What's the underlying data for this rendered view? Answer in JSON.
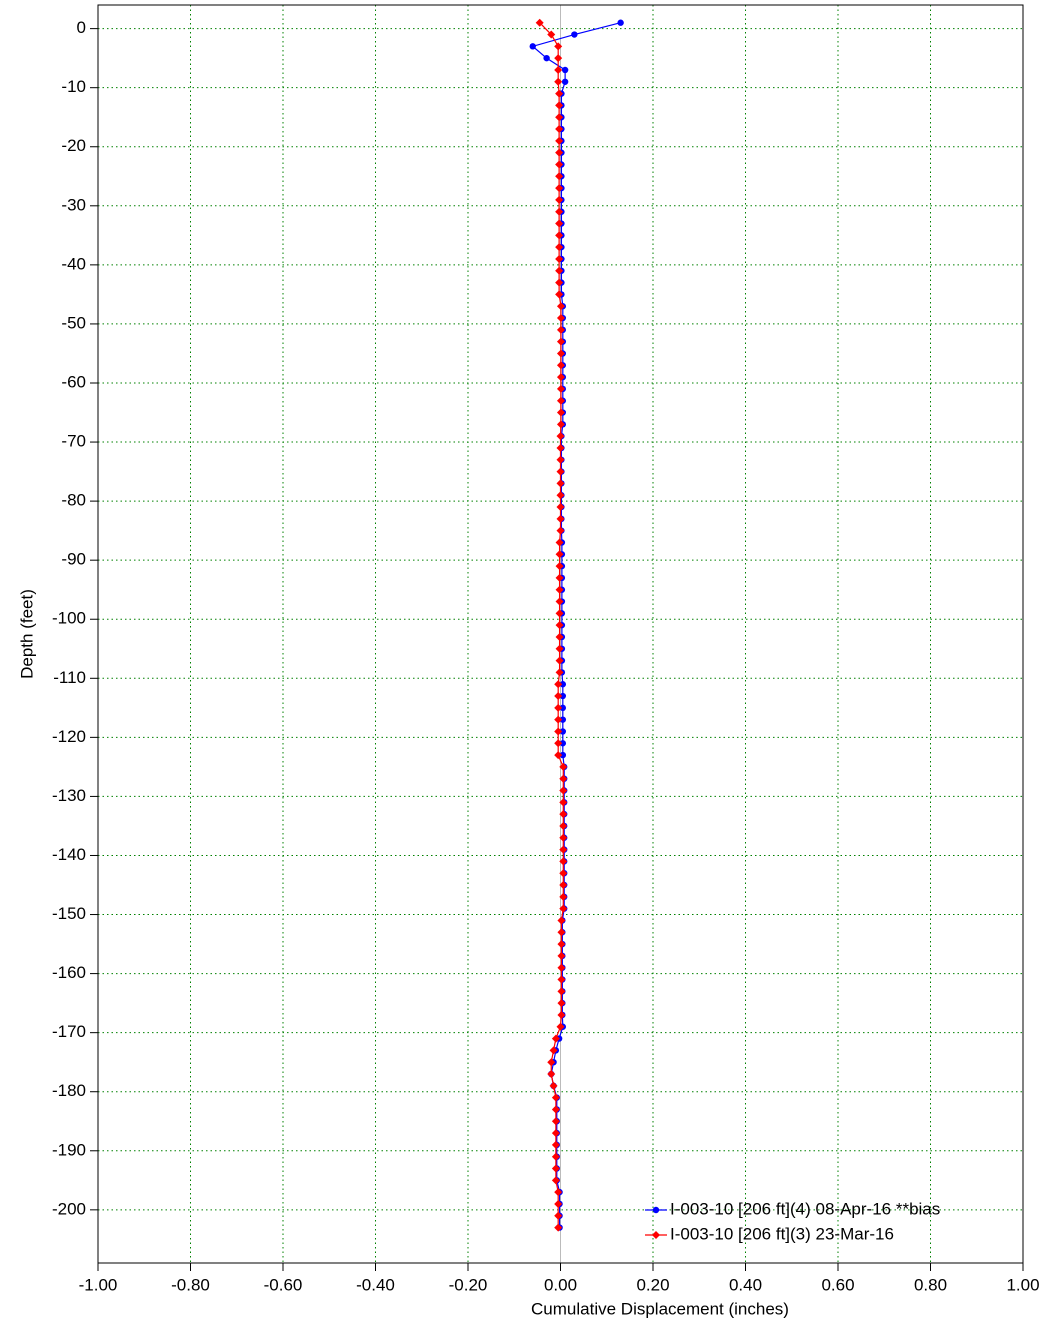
{
  "chart_data": {
    "type": "profile",
    "x_label": "Cumulative Displacement (inches)",
    "y_label": "Depth (feet)",
    "xlim": [
      -1,
      1
    ],
    "ylim": [
      -209,
      4
    ],
    "xticks": [
      {
        "value": -1,
        "label": "-1.00"
      },
      {
        "value": -0.8,
        "label": "-0.80"
      },
      {
        "value": -0.6,
        "label": "-0.60"
      },
      {
        "value": -0.4,
        "label": "-0.40"
      },
      {
        "value": -0.2,
        "label": "-0.20"
      },
      {
        "value": 0,
        "label": "0.00"
      },
      {
        "value": 0.2,
        "label": "0.20"
      },
      {
        "value": 0.4,
        "label": "0.40"
      },
      {
        "value": 0.6,
        "label": "0.60"
      },
      {
        "value": 0.8,
        "label": "0.80"
      },
      {
        "value": 1,
        "label": "1.00"
      }
    ],
    "yticks": [
      0,
      -10,
      -20,
      -30,
      -40,
      -50,
      -60,
      -70,
      -80,
      -90,
      -100,
      -110,
      -120,
      -130,
      -140,
      -150,
      -160,
      -170,
      -180,
      -190,
      -200
    ],
    "grid": true,
    "legend": "lower right",
    "depths": [
      1,
      -1,
      -3,
      -5,
      -7,
      -9,
      -11,
      -13,
      -15,
      -17,
      -19,
      -21,
      -23,
      -25,
      -27,
      -29,
      -31,
      -33,
      -35,
      -37,
      -39,
      -41,
      -43,
      -45,
      -47,
      -49,
      -51,
      -53,
      -55,
      -57,
      -59,
      -61,
      -63,
      -65,
      -67,
      -69,
      -71,
      -73,
      -75,
      -77,
      -79,
      -81,
      -83,
      -85,
      -87,
      -89,
      -91,
      -93,
      -95,
      -97,
      -99,
      -101,
      -103,
      -105,
      -107,
      -109,
      -111,
      -113,
      -115,
      -117,
      -119,
      -121,
      -123,
      -125,
      -127,
      -129,
      -131,
      -133,
      -135,
      -137,
      -139,
      -141,
      -143,
      -145,
      -147,
      -149,
      -151,
      -153,
      -155,
      -157,
      -159,
      -161,
      -163,
      -165,
      -167,
      -169,
      -171,
      -173,
      -175,
      -177,
      -179,
      -181,
      -183,
      -185,
      -187,
      -189,
      -191,
      -193,
      -195,
      -197,
      -199,
      -201,
      -203
    ],
    "series": [
      {
        "name": "I-003-10 [206 ft](4) 08-Apr-16 **bias",
        "color": "#0000ff",
        "values": [
          0.13,
          0.03,
          -0.06,
          -0.03,
          0.01,
          0.01,
          0.002,
          0.002,
          0.002,
          0.002,
          0.002,
          0.002,
          0.002,
          0.002,
          0.002,
          0.002,
          0.002,
          0.002,
          0.002,
          0.002,
          0.002,
          0.002,
          0.002,
          0.002,
          0.005,
          0.005,
          0.005,
          0.005,
          0.005,
          0.005,
          0.005,
          0.005,
          0.005,
          0.005,
          0.005,
          0.002,
          0.002,
          0.002,
          0.002,
          0.002,
          0.002,
          0.002,
          0.002,
          0.002,
          0.003,
          0.003,
          0.003,
          0.003,
          0.003,
          0.003,
          0.003,
          0.003,
          0.003,
          0.003,
          0.003,
          0.003,
          0.005,
          0.005,
          0.005,
          0.005,
          0.005,
          0.005,
          0.005,
          0.008,
          0.008,
          0.008,
          0.008,
          0.008,
          0.008,
          0.008,
          0.008,
          0.008,
          0.008,
          0.008,
          0.008,
          0.008,
          0.004,
          0.004,
          0.004,
          0.004,
          0.004,
          0.004,
          0.004,
          0.004,
          0.004,
          0.005,
          -0.003,
          -0.01,
          -0.015,
          -0.02,
          -0.015,
          -0.008,
          -0.008,
          -0.008,
          -0.008,
          -0.008,
          -0.008,
          -0.008,
          -0.008,
          -0.002,
          -0.002,
          -0.002,
          -0.002
        ]
      },
      {
        "name": "I-003-10 [206 ft](3) 23-Mar-16",
        "color": "#ff0000",
        "values": [
          -0.045,
          -0.02,
          -0.005,
          -0.005,
          -0.005,
          -0.005,
          -0.003,
          -0.003,
          -0.003,
          -0.003,
          -0.003,
          -0.003,
          -0.003,
          -0.003,
          -0.003,
          -0.003,
          -0.003,
          -0.003,
          -0.003,
          -0.003,
          -0.003,
          -0.003,
          -0.003,
          -0.003,
          0.001,
          0.001,
          0.001,
          0.001,
          0.001,
          0.001,
          0.001,
          0.001,
          0.001,
          0.001,
          0.001,
          0,
          0,
          0,
          0,
          0,
          0,
          0,
          0,
          0,
          -0.002,
          -0.002,
          -0.002,
          -0.002,
          -0.002,
          -0.002,
          -0.002,
          -0.002,
          -0.002,
          -0.002,
          -0.002,
          -0.002,
          -0.005,
          -0.005,
          -0.005,
          -0.005,
          -0.005,
          -0.005,
          -0.005,
          0.006,
          0.006,
          0.006,
          0.006,
          0.006,
          0.006,
          0.006,
          0.006,
          0.006,
          0.006,
          0.006,
          0.006,
          0.006,
          0.002,
          0.002,
          0.002,
          0.002,
          0.002,
          0.002,
          0.002,
          0.002,
          0.002,
          0,
          -0.01,
          -0.015,
          -0.02,
          -0.02,
          -0.015,
          -0.01,
          -0.01,
          -0.01,
          -0.01,
          -0.01,
          -0.01,
          -0.01,
          -0.01,
          -0.005,
          -0.005,
          -0.005,
          -0.005
        ]
      }
    ]
  }
}
